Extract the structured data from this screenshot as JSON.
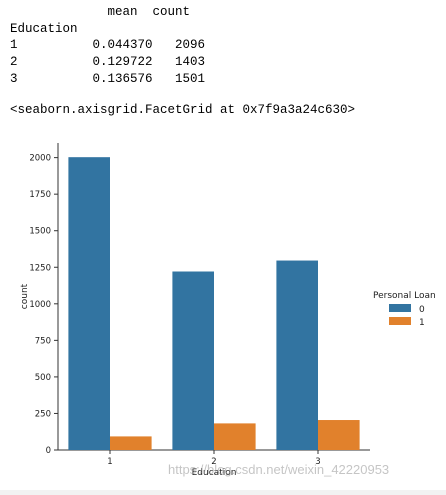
{
  "output": {
    "table_header": "             mean  count",
    "index_label": "Education",
    "rows": [
      "1          0.044370   2096",
      "2          0.129722   1403",
      "3          0.136576   1501"
    ],
    "repr": "<seaborn.axisgrid.FacetGrid at 0x7f9a3a24c630>"
  },
  "watermark": "https://blog.csdn.net/weixin_42220953",
  "chart_data": {
    "type": "bar",
    "categories": [
      "1",
      "2",
      "3"
    ],
    "xlabel": "Education",
    "ylabel": "count",
    "ylim": [
      0,
      2100
    ],
    "yticks": [
      0,
      250,
      500,
      750,
      1000,
      1250,
      1500,
      1750,
      2000
    ],
    "legend_title": "Personal Loan",
    "legend_position": "right",
    "series": [
      {
        "name": "0",
        "color": "#3274a1",
        "values": [
          2003,
          1221,
          1296
        ]
      },
      {
        "name": "1",
        "color": "#e1812c",
        "values": [
          93,
          182,
          205
        ]
      }
    ]
  }
}
